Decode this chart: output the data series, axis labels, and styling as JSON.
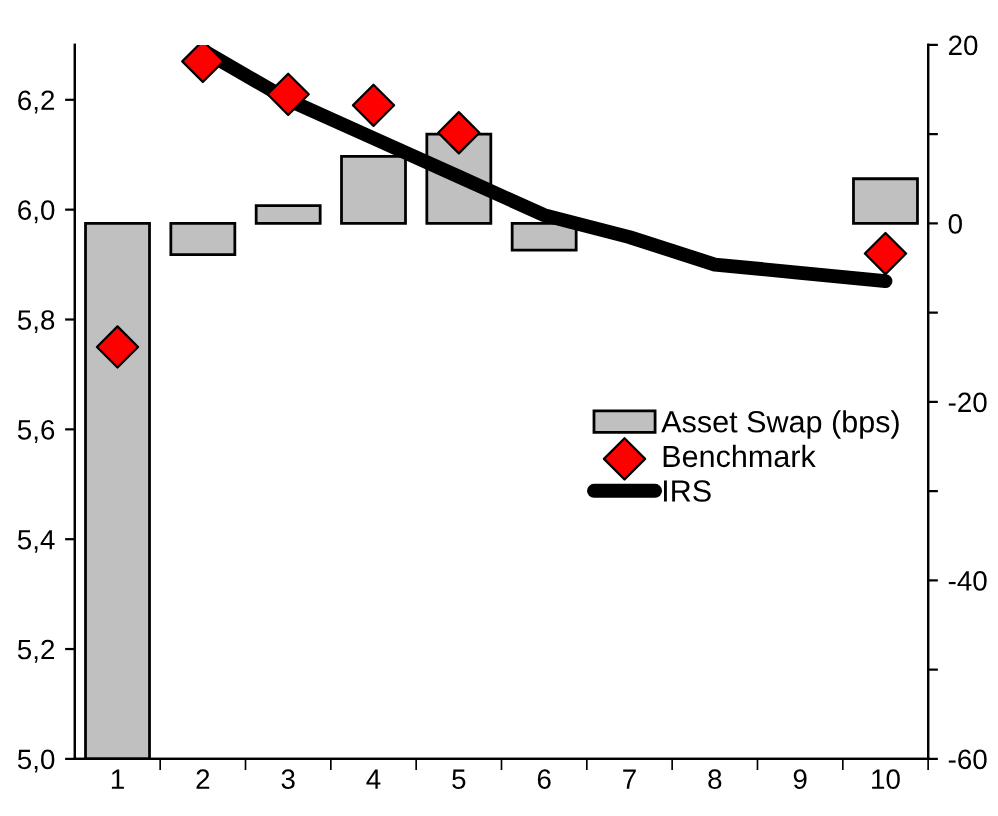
{
  "chart_data": {
    "type": "bar",
    "categories": [
      "1",
      "2",
      "3",
      "4",
      "5",
      "6",
      "7",
      "8",
      "9",
      "10"
    ],
    "series": [
      {
        "name": "Asset Swap (bps)",
        "axis": "y2",
        "color": "#c0c0c0",
        "values": [
          -60,
          -3.5,
          2,
          7.5,
          10,
          -3,
          null,
          null,
          null,
          5
        ]
      },
      {
        "name": "Benchmark",
        "type": "scatter",
        "marker": "diamond",
        "color": "#ff0000",
        "values": [
          5.75,
          6.27,
          6.21,
          6.19,
          6.14,
          null,
          null,
          null,
          null,
          5.92
        ]
      },
      {
        "name": "IRS",
        "type": "line",
        "color": "#000000",
        "values": [
          null,
          6.29,
          6.2,
          6.13,
          6.06,
          5.99,
          5.95,
          5.9,
          5.885,
          5.87
        ]
      }
    ],
    "ylim": [
      5.0,
      6.3
    ],
    "yticks": [
      {
        "value": 5.0,
        "label": "5,0"
      },
      {
        "value": 5.2,
        "label": "5,2"
      },
      {
        "value": 5.4,
        "label": "5,4"
      },
      {
        "value": 5.6,
        "label": "5,6"
      },
      {
        "value": 5.8,
        "label": "5,8"
      },
      {
        "value": 6.0,
        "label": "6,0"
      },
      {
        "value": 6.2,
        "label": "6,2"
      }
    ],
    "y2lim": [
      -60,
      20
    ],
    "y2ticks": [
      {
        "value": -60,
        "label": "-60"
      },
      {
        "value": -50,
        "label": null
      },
      {
        "value": -40,
        "label": "-40"
      },
      {
        "value": -30,
        "label": null
      },
      {
        "value": -20,
        "label": "-20"
      },
      {
        "value": -10,
        "label": null
      },
      0,
      {
        "value": 10,
        "label": null
      },
      20
    ],
    "legend": "right",
    "grid": false
  }
}
